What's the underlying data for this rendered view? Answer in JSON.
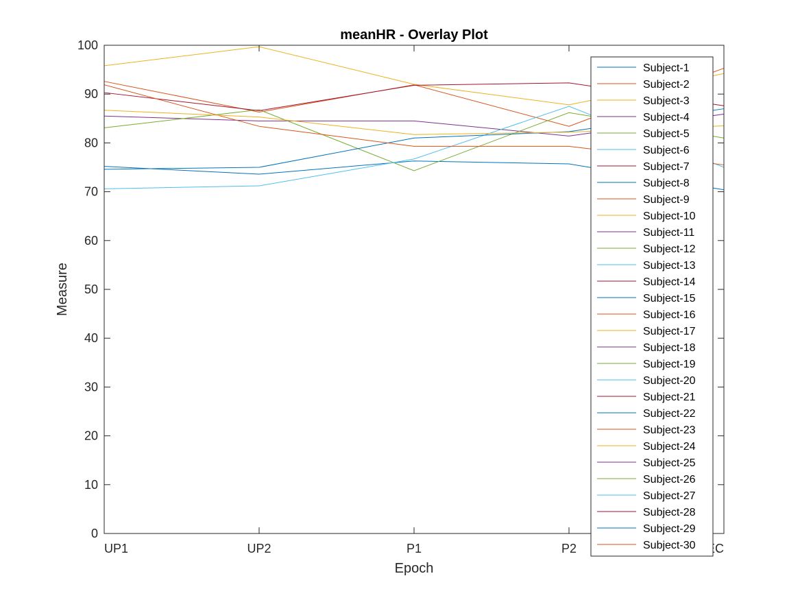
{
  "chart_data": {
    "type": "line",
    "title": "meanHR - Overlay Plot",
    "xlabel": "Epoch",
    "ylabel": "Measure",
    "categories": [
      "UP1",
      "UP2",
      "P1",
      "P2",
      "REC"
    ],
    "ylim": [
      0,
      100
    ],
    "yticks": [
      0,
      10,
      20,
      30,
      40,
      50,
      60,
      70,
      80,
      90,
      100
    ],
    "grid": false,
    "legend_position": "top-right",
    "series": [
      {
        "name": "Subject-1",
        "color": "#0072BD",
        "values": [
          75.2,
          73.6,
          76.3,
          75.7,
          70.4
        ]
      },
      {
        "name": "Subject-2",
        "color": "#D95319",
        "values": [
          92.6,
          86.3,
          91.9,
          83.4,
          95.3
        ]
      },
      {
        "name": "Subject-3",
        "color": "#EDB120",
        "values": [
          95.8,
          99.7,
          92.0,
          87.8,
          94.2
        ]
      },
      {
        "name": "Subject-4",
        "color": "#7E2F8E",
        "values": [
          85.5,
          84.5,
          84.5,
          81.4,
          85.9
        ]
      },
      {
        "name": "Subject-5",
        "color": "#77AC30",
        "values": [
          83.1,
          86.8,
          74.3,
          86.2,
          81.0
        ]
      },
      {
        "name": "Subject-6",
        "color": "#4DBEEE",
        "values": [
          70.6,
          71.2,
          76.7,
          87.5,
          75.0
        ]
      },
      {
        "name": "Subject-7",
        "color": "#A2142F",
        "values": [
          90.3,
          86.6,
          91.8,
          92.3,
          87.6
        ]
      },
      {
        "name": "Subject-8",
        "color": "#0072BD",
        "values": [
          74.6,
          75.0,
          81.0,
          82.3,
          87.0
        ]
      },
      {
        "name": "Subject-9",
        "color": "#D95319",
        "values": [
          91.9,
          83.4,
          79.3,
          79.3,
          75.5
        ]
      },
      {
        "name": "Subject-10",
        "color": "#EDB120",
        "values": [
          86.7,
          85.3,
          81.7,
          82.2,
          83.5
        ]
      },
      {
        "name": "Subject-11",
        "color": "#7E2F8E",
        "values": [
          0,
          0,
          0,
          0,
          0
        ]
      },
      {
        "name": "Subject-12",
        "color": "#77AC30",
        "values": [
          0,
          0,
          0,
          0,
          0
        ]
      },
      {
        "name": "Subject-13",
        "color": "#4DBEEE",
        "values": [
          0,
          0,
          0,
          0,
          0
        ]
      },
      {
        "name": "Subject-14",
        "color": "#A2142F",
        "values": [
          0,
          0,
          0,
          0,
          0
        ]
      },
      {
        "name": "Subject-15",
        "color": "#0072BD",
        "values": [
          0,
          0,
          0,
          0,
          0
        ]
      },
      {
        "name": "Subject-16",
        "color": "#D95319",
        "values": [
          0,
          0,
          0,
          0,
          0
        ]
      },
      {
        "name": "Subject-17",
        "color": "#EDB120",
        "values": [
          0,
          0,
          0,
          0,
          0
        ]
      },
      {
        "name": "Subject-18",
        "color": "#7E2F8E",
        "values": [
          0,
          0,
          0,
          0,
          0
        ]
      },
      {
        "name": "Subject-19",
        "color": "#77AC30",
        "values": [
          0,
          0,
          0,
          0,
          0
        ]
      },
      {
        "name": "Subject-20",
        "color": "#4DBEEE",
        "values": [
          0,
          0,
          0,
          0,
          0
        ]
      },
      {
        "name": "Subject-21",
        "color": "#A2142F",
        "values": [
          0,
          0,
          0,
          0,
          0
        ]
      },
      {
        "name": "Subject-22",
        "color": "#0072BD",
        "values": [
          0,
          0,
          0,
          0,
          0
        ]
      },
      {
        "name": "Subject-23",
        "color": "#D95319",
        "values": [
          0,
          0,
          0,
          0,
          0
        ]
      },
      {
        "name": "Subject-24",
        "color": "#EDB120",
        "values": [
          0,
          0,
          0,
          0,
          0
        ]
      },
      {
        "name": "Subject-25",
        "color": "#7E2F8E",
        "values": [
          0,
          0,
          0,
          0,
          0
        ]
      },
      {
        "name": "Subject-26",
        "color": "#77AC30",
        "values": [
          0,
          0,
          0,
          0,
          0
        ]
      },
      {
        "name": "Subject-27",
        "color": "#4DBEEE",
        "values": [
          0,
          0,
          0,
          0,
          0
        ]
      },
      {
        "name": "Subject-28",
        "color": "#A2142F",
        "values": [
          0,
          0,
          0,
          0,
          0
        ]
      },
      {
        "name": "Subject-29",
        "color": "#0072BD",
        "values": [
          0,
          0,
          0,
          0,
          0
        ]
      },
      {
        "name": "Subject-30",
        "color": "#D95319",
        "values": [
          0,
          0,
          0,
          0,
          0
        ]
      }
    ]
  }
}
